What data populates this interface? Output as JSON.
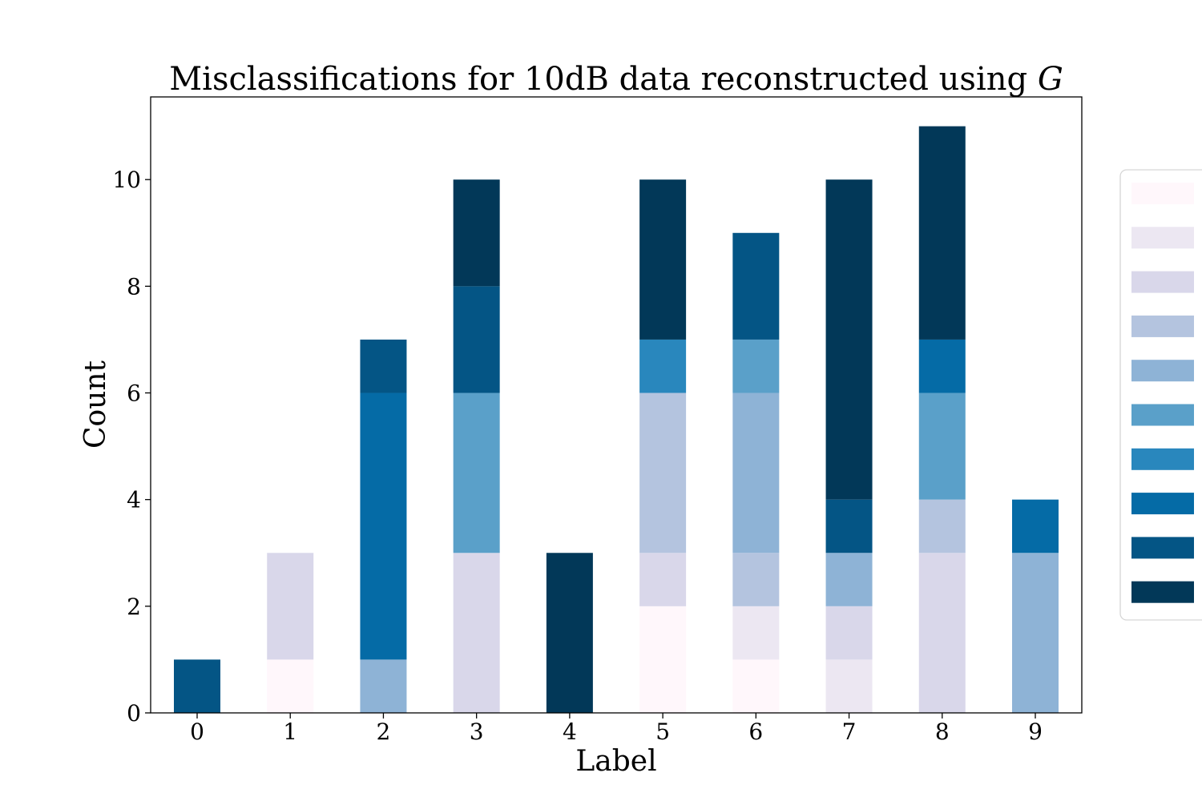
{
  "chart_data": {
    "type": "bar",
    "stacked": true,
    "title": "Misclassifications for 10dB data reconstructed using",
    "title_symbol": "G",
    "xlabel": "Label",
    "ylabel": "Count",
    "categories": [
      "0",
      "1",
      "2",
      "3",
      "4",
      "5",
      "6",
      "7",
      "8",
      "9"
    ],
    "ylim": [
      0,
      11.55
    ],
    "yticks": [
      0,
      2,
      4,
      6,
      8,
      10
    ],
    "grid": false,
    "legend": {
      "placement": "right",
      "entries_visible_text": false
    },
    "series": [
      {
        "color": "#fff7fb",
        "values": [
          0,
          1,
          0,
          0,
          0,
          2,
          1,
          0,
          0,
          0
        ]
      },
      {
        "color": "#ece7f2",
        "values": [
          0,
          0,
          0,
          0,
          0,
          0,
          1,
          1,
          0,
          0
        ]
      },
      {
        "color": "#d9d7ea",
        "values": [
          0,
          2,
          0,
          3,
          0,
          1,
          0,
          1,
          3,
          0
        ]
      },
      {
        "color": "#b4c4df",
        "values": [
          0,
          0,
          0,
          0,
          0,
          3,
          1,
          0,
          1,
          0
        ]
      },
      {
        "color": "#8eb3d6",
        "values": [
          0,
          0,
          1,
          0,
          0,
          0,
          3,
          1,
          0,
          3
        ]
      },
      {
        "color": "#5aa0c9",
        "values": [
          0,
          0,
          0,
          3,
          0,
          0,
          1,
          0,
          2,
          0
        ]
      },
      {
        "color": "#2987bd",
        "values": [
          0,
          0,
          0,
          0,
          0,
          1,
          0,
          0,
          0,
          0
        ]
      },
      {
        "color": "#056ba6",
        "values": [
          0,
          0,
          5,
          0,
          0,
          0,
          0,
          0,
          1,
          1
        ]
      },
      {
        "color": "#045585",
        "values": [
          1,
          0,
          1,
          2,
          0,
          0,
          2,
          1,
          0,
          0
        ]
      },
      {
        "color": "#023858",
        "values": [
          0,
          0,
          0,
          2,
          3,
          3,
          0,
          6,
          4,
          0
        ]
      }
    ]
  }
}
